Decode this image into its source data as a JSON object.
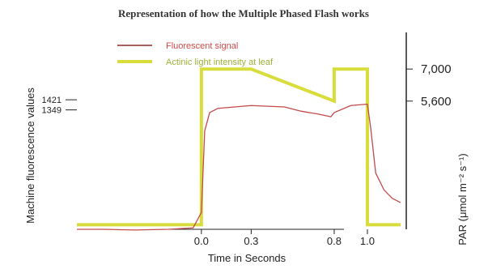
{
  "chart_data": {
    "type": "line",
    "title": "Representation of how the Multiple Phased Flash works",
    "xlabel": "Time in Seconds",
    "ylabel_left": "Machine fluorescence values",
    "ylabel_right": "PAR (μmol m⁻² s⁻¹)",
    "x_ticks": [
      0.0,
      0.3,
      0.8,
      1.0
    ],
    "x_tick_labels": [
      "0.0",
      "0.3",
      "0.8",
      "1.0"
    ],
    "xlim": [
      -0.75,
      1.2
    ],
    "left_ticks": [
      1421,
      1349
    ],
    "left_tick_labels": [
      "1421",
      "1349"
    ],
    "left_ylim": [
      500,
      1900
    ],
    "right_ticks": [
      7000,
      5600
    ],
    "right_tick_labels": [
      "7,000",
      "5,600"
    ],
    "right_ylim": [
      0,
      8600
    ],
    "grid": false,
    "legend_position": "top-left",
    "legend": {
      "fluorescent_label": "Fluorescent signal",
      "actinic_label": "Actinic light intensity at leaf"
    },
    "series": [
      {
        "name": "Fluorescent signal",
        "color": "#c24a4a",
        "x": [
          -0.75,
          -0.6,
          -0.4,
          -0.2,
          -0.05,
          0.0,
          0.02,
          0.05,
          0.1,
          0.2,
          0.3,
          0.4,
          0.5,
          0.6,
          0.7,
          0.78,
          0.8,
          0.9,
          1.0,
          1.02,
          1.05,
          1.1,
          1.15,
          1.2
        ],
        "y": [
          500,
          500,
          495,
          500,
          510,
          620,
          1200,
          1330,
          1360,
          1370,
          1380,
          1375,
          1370,
          1340,
          1320,
          1300,
          1330,
          1380,
          1390,
          1220,
          900,
          780,
          720,
          690
        ]
      },
      {
        "name": "Actinic light intensity at leaf",
        "color": "#d8dd3c",
        "x": [
          -0.75,
          0.0,
          0.0,
          0.3,
          0.8,
          0.8,
          1.0,
          1.0,
          1.2
        ],
        "y": [
          200,
          200,
          7000,
          7000,
          5600,
          7000,
          7000,
          200,
          200
        ]
      }
    ]
  }
}
